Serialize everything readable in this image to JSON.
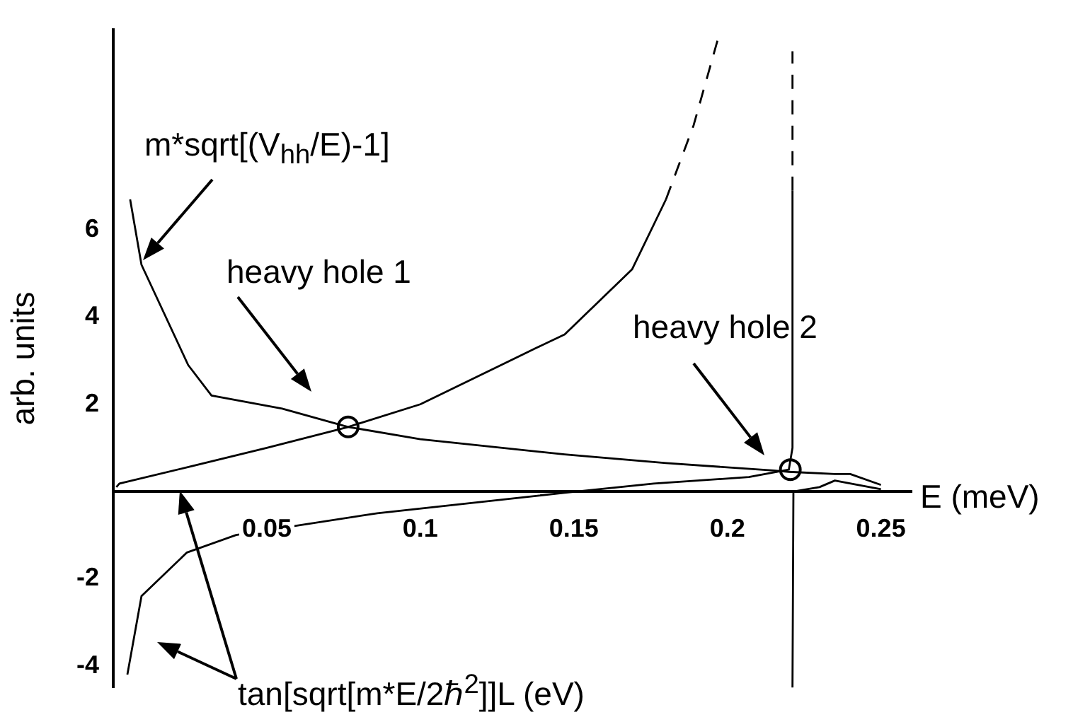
{
  "chart_data": {
    "type": "line",
    "xlabel": "E (meV)",
    "ylabel": "arb. units",
    "xlim": [
      0,
      0.26
    ],
    "xticks": [
      0.05,
      0.1,
      0.15,
      0.2,
      0.25
    ],
    "ylim": [
      -4.5,
      10.6
    ],
    "yticks": [
      -4,
      -2,
      2,
      4,
      6
    ],
    "grid": false,
    "legend": false,
    "marker": "none",
    "line_style": "solid",
    "annotations": [
      "m*sqrt[(V$_{hh}$/E)-1]",
      "heavy hole 1",
      "heavy hole 2",
      "tan[sqrt[m*E/2ℏ$^{2}$]]L (eV)"
    ],
    "series": [
      {
        "color": "#000000",
        "x": [
          0.0055,
          0.0092,
          0.0244,
          0.032,
          0.055,
          0.0765,
          0.1,
          0.147,
          0.18,
          0.215,
          0.22,
          0.235,
          0.24,
          0.25
        ],
        "values": [
          6.7,
          5.2,
          2.9,
          2.2,
          1.9,
          1.48,
          1.2,
          0.85,
          0.65,
          0.48,
          0.45,
          0.4,
          0.4,
          0.15
        ]
      },
      {
        "color": "#000000",
        "x": [
          0.001,
          0.002,
          0.025,
          0.05,
          0.0765,
          0.1,
          0.138,
          0.147,
          0.169,
          0.18
        ],
        "values": [
          0.1,
          0.18,
          0.57,
          1,
          1.48,
          2,
          3.3,
          3.6,
          5.1,
          6.7
        ]
      },
      {
        "color": "#000000",
        "line_style": "dashed",
        "x": [
          0.18,
          0.189,
          0.197
        ],
        "values": [
          6.7,
          8.4,
          10.4
        ]
      },
      {
        "color": "#000000",
        "x": [
          0.0046,
          0.0092,
          0.024,
          0.04,
          0.086,
          0.147,
          0.176,
          0.207,
          0.22,
          0.2212,
          0.2212
        ],
        "values": [
          -4.2,
          -2.4,
          -1.4,
          -1,
          -0.5,
          -0.03,
          0.18,
          0.33,
          0.5,
          1,
          6.9
        ]
      },
      {
        "color": "#000000",
        "line_style": "dashed",
        "x": [
          0.2212,
          0.2212
        ],
        "values": [
          6.9,
          10.1
        ]
      },
      {
        "color": "#000000",
        "x": [
          0.2212,
          0.2215,
          0.23,
          0.235,
          0.25
        ],
        "values": [
          -4.5,
          0,
          0.1,
          0.25,
          0.05
        ]
      },
      {
        "type": "scatter",
        "color": "#000000",
        "marker": "circle",
        "x": [
          0.0765,
          0.2205
        ],
        "values": [
          1.48,
          0.5
        ]
      }
    ]
  }
}
